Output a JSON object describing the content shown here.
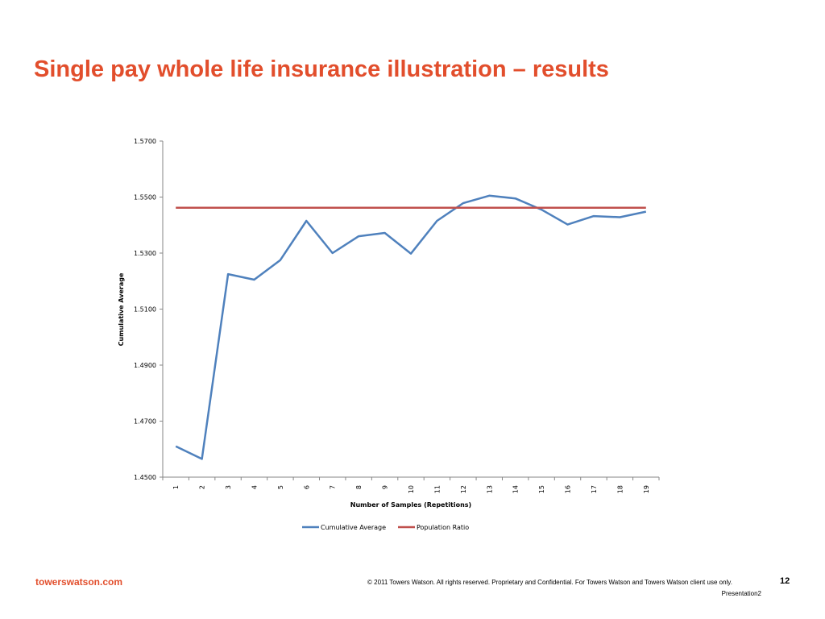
{
  "slide": {
    "title": "Single pay whole life insurance illustration – results"
  },
  "footer": {
    "brand": "towerswatson.com",
    "legal": "© 2011 Towers Watson. All rights reserved. Proprietary and Confidential. For Towers Watson and Towers Watson client use only.",
    "page_number": "12",
    "filename": "Presentation2"
  },
  "colors": {
    "accent": "#e24e2c",
    "series_cumulative": "#4f81bd",
    "series_population": "#c0504d"
  },
  "chart_data": {
    "type": "line",
    "title": "",
    "xlabel": "Number of Samples (Repetitions)",
    "ylabel": "Cumulative Average",
    "categories": [
      "1",
      "2",
      "3",
      "4",
      "5",
      "6",
      "7",
      "8",
      "9",
      "10",
      "11",
      "12",
      "13",
      "14",
      "15",
      "16",
      "17",
      "18",
      "19"
    ],
    "yticks": [
      "1.4500",
      "1.4700",
      "1.4900",
      "1.5100",
      "1.5300",
      "1.5500",
      "1.5700"
    ],
    "ylim": [
      1.45,
      1.57
    ],
    "grid": false,
    "legend_position": "bottom",
    "series": [
      {
        "name": "Cumulative Average",
        "color": "#4f81bd",
        "values": [
          1.461,
          1.4565,
          1.5225,
          1.5205,
          1.5275,
          1.5415,
          1.53,
          1.536,
          1.5372,
          1.5298,
          1.5415,
          1.5478,
          1.5505,
          1.5495,
          1.5455,
          1.5402,
          1.5432,
          1.5428,
          1.5448
        ]
      },
      {
        "name": "Population Ratio",
        "color": "#c0504d",
        "values": [
          1.5462,
          1.5462,
          1.5462,
          1.5462,
          1.5462,
          1.5462,
          1.5462,
          1.5462,
          1.5462,
          1.5462,
          1.5462,
          1.5462,
          1.5462,
          1.5462,
          1.5462,
          1.5462,
          1.5462,
          1.5462,
          1.5462
        ]
      }
    ]
  }
}
